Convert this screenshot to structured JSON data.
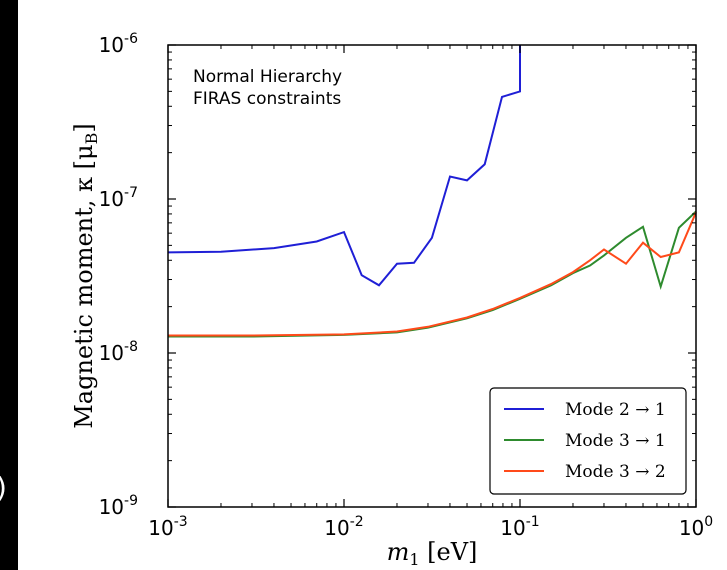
{
  "chart_data": {
    "type": "line",
    "xscale": "log",
    "yscale": "log",
    "xlim": [
      0.001,
      1
    ],
    "ylim": [
      1e-09,
      1e-06
    ],
    "xticks": [
      {
        "base": "10",
        "exp": "-3",
        "value": 0.001
      },
      {
        "base": "10",
        "exp": "-2",
        "value": 0.01
      },
      {
        "base": "10",
        "exp": "-1",
        "value": 0.1
      },
      {
        "base": "10",
        "exp": "0",
        "value": 1
      }
    ],
    "yticks": [
      {
        "base": "10",
        "exp": "-9",
        "value": 1e-09
      },
      {
        "base": "10",
        "exp": "-8",
        "value": 1e-08
      },
      {
        "base": "10",
        "exp": "-7",
        "value": 1e-07
      },
      {
        "base": "10",
        "exp": "-6",
        "value": 1e-06
      }
    ],
    "xlabel": {
      "main": "m",
      "sub": "1",
      "unit": " [eV]"
    },
    "ylabel": "Magnetic moment, κ [μ",
    "ylabel_sub": "B",
    "ylabel_end": "]",
    "annotations": [
      "Normal Hierarchy",
      "FIRAS constraints"
    ],
    "legend_position": "lower-right",
    "grid": false,
    "series": [
      {
        "name": "Mode 2 → 1",
        "color": "#1f1fd6",
        "x": [
          0.001,
          0.002,
          0.004,
          0.007,
          0.01,
          0.0126,
          0.0158,
          0.02,
          0.025,
          0.0316,
          0.04,
          0.05,
          0.063,
          0.079,
          0.1,
          0.1
        ],
        "y": [
          4.5e-08,
          4.55e-08,
          4.8e-08,
          5.3e-08,
          6.1e-08,
          3.2e-08,
          2.75e-08,
          3.8e-08,
          3.85e-08,
          5.6e-08,
          1.4e-07,
          1.32e-07,
          1.68e-07,
          4.6e-07,
          5e-07,
          1e-06
        ]
      },
      {
        "name": "Mode 3 → 1",
        "color": "#2e8b2e",
        "x": [
          0.001,
          0.003,
          0.01,
          0.02,
          0.03,
          0.05,
          0.07,
          0.1,
          0.15,
          0.2,
          0.25,
          0.3,
          0.4,
          0.5,
          0.63,
          0.8,
          1.0
        ],
        "y": [
          1.28e-08,
          1.28e-08,
          1.31e-08,
          1.36e-08,
          1.46e-08,
          1.68e-08,
          1.9e-08,
          2.25e-08,
          2.75e-08,
          3.3e-08,
          3.7e-08,
          4.3e-08,
          5.6e-08,
          6.6e-08,
          2.7e-08,
          6.5e-08,
          8.3e-08
        ]
      },
      {
        "name": "Mode 3 → 2",
        "color": "#ff4a1a",
        "x": [
          0.001,
          0.003,
          0.01,
          0.02,
          0.03,
          0.05,
          0.07,
          0.1,
          0.15,
          0.2,
          0.25,
          0.3,
          0.4,
          0.5,
          0.63,
          0.8,
          1.0
        ],
        "y": [
          1.3e-08,
          1.3e-08,
          1.32e-08,
          1.38e-08,
          1.48e-08,
          1.7e-08,
          1.93e-08,
          2.28e-08,
          2.8e-08,
          3.35e-08,
          4e-08,
          4.7e-08,
          3.8e-08,
          5.2e-08,
          4.2e-08,
          4.5e-08,
          8.2e-08
        ]
      }
    ]
  },
  "edge_glyph": ")"
}
